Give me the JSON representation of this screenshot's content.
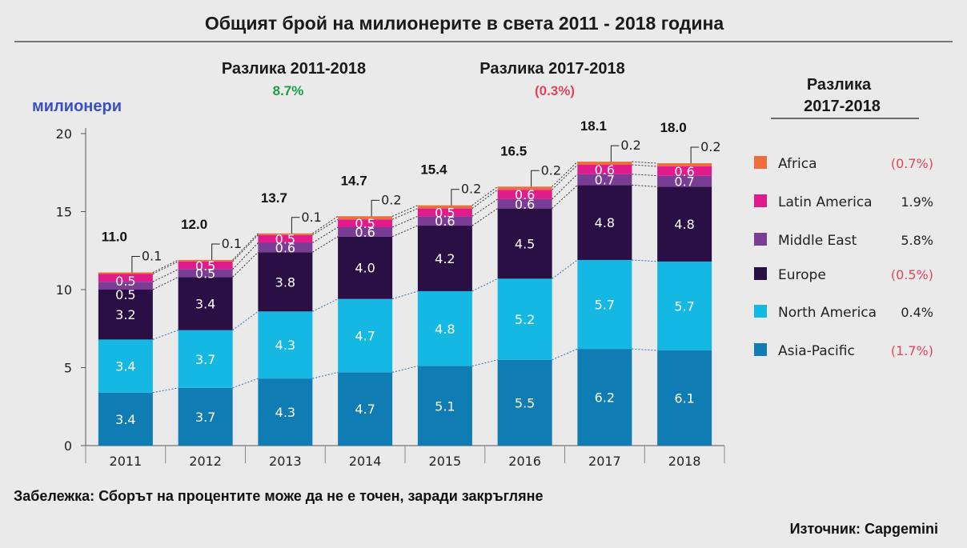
{
  "header": {
    "title": "Общият брой на милионерите в света 2011 - 2018 година"
  },
  "differences": {
    "left": {
      "label": "Разлика 2011-2018",
      "value": "8.7%",
      "color": "#1e9e48"
    },
    "right": {
      "label": "Разлика 2017-2018",
      "value": "(0.3%)",
      "color": "#e0465e"
    }
  },
  "legend": {
    "title_line1": "Разлика",
    "title_line2": "2017-2018",
    "items": [
      {
        "name": "Africa",
        "change": "(0.7%)",
        "change_color": "#e0465e",
        "color": "#ee6d3d"
      },
      {
        "name": "Latin America",
        "change": "1.9%",
        "change_color": "#222222",
        "color": "#e01b8b"
      },
      {
        "name": "Middle East",
        "change": "5.8%",
        "change_color": "#222222",
        "color": "#7a3d96"
      },
      {
        "name": "Europe",
        "change": "(0.5%)",
        "change_color": "#e0465e",
        "color": "#2a0f45"
      },
      {
        "name": "North America",
        "change": "0.4%",
        "change_color": "#222222",
        "color": "#14b8e3"
      },
      {
        "name": "Asia-Pacific",
        "change": "(1.7%)",
        "change_color": "#e0465e",
        "color": "#0f7cb4"
      }
    ]
  },
  "chart_data": {
    "type": "bar",
    "stacked": true,
    "title": "Общият брой на милионерите в света 2011 - 2018 година",
    "ylabel": "милионери",
    "xlabel": "",
    "ylim": [
      0,
      20
    ],
    "yticks": [
      "0",
      "5",
      "10",
      "15",
      "20"
    ],
    "categories": [
      "2011",
      "2012",
      "2013",
      "2014",
      "2015",
      "2016",
      "2017",
      "2018"
    ],
    "totals": [
      "11.0",
      "12.0",
      "13.7",
      "14.7",
      "15.4",
      "16.5",
      "18.1",
      "18.0"
    ],
    "series": [
      {
        "name": "Asia-Pacific",
        "color": "#0f7cb4",
        "values": [
          3.4,
          3.7,
          4.3,
          4.7,
          5.1,
          5.5,
          6.2,
          6.1
        ],
        "labels": [
          "3.4",
          "3.7",
          "4.3",
          "4.7",
          "5.1",
          "5.5",
          "6.2",
          "6.1"
        ]
      },
      {
        "name": "North America",
        "color": "#14b8e3",
        "values": [
          3.4,
          3.7,
          4.3,
          4.7,
          4.8,
          5.2,
          5.7,
          5.7
        ],
        "labels": [
          "3.4",
          "3.7",
          "4.3",
          "4.7",
          "4.8",
          "5.2",
          "5.7",
          "5.7"
        ]
      },
      {
        "name": "Europe",
        "color": "#2a0f45",
        "values": [
          3.2,
          3.4,
          3.8,
          4.0,
          4.2,
          4.5,
          4.8,
          4.8
        ],
        "labels": [
          "3.2",
          "3.4",
          "3.8",
          "4.0",
          "4.2",
          "4.5",
          "4.8",
          "4.8"
        ]
      },
      {
        "name": "Middle East",
        "color": "#7a3d96",
        "values": [
          0.5,
          0.5,
          0.6,
          0.6,
          0.6,
          0.6,
          0.7,
          0.7
        ],
        "labels": [
          "0.5",
          "0.5",
          "0.6",
          "0.6",
          "0.6",
          "0.6",
          "0.7",
          "0.7"
        ]
      },
      {
        "name": "Latin America",
        "color": "#e01b8b",
        "values": [
          0.5,
          0.5,
          0.5,
          0.5,
          0.5,
          0.6,
          0.6,
          0.6
        ],
        "labels": [
          "0.5",
          "0.5",
          "0.5",
          "0.5",
          "0.5",
          "0.6",
          "0.6",
          "0.6"
        ]
      },
      {
        "name": "Africa",
        "color": "#ee6d3d",
        "values": [
          0.1,
          0.1,
          0.1,
          0.2,
          0.2,
          0.2,
          0.2,
          0.2
        ],
        "labels": [
          "0.1",
          "0.1",
          "0.1",
          "0.2",
          "0.2",
          "0.2",
          "0.2",
          "0.2"
        ]
      }
    ],
    "grid": false,
    "legend_position": "right"
  },
  "footer": {
    "note": "Забележка: Сборът на процентите може да не е точен, заради закръгляне",
    "source": "Източник: Capgemini"
  }
}
